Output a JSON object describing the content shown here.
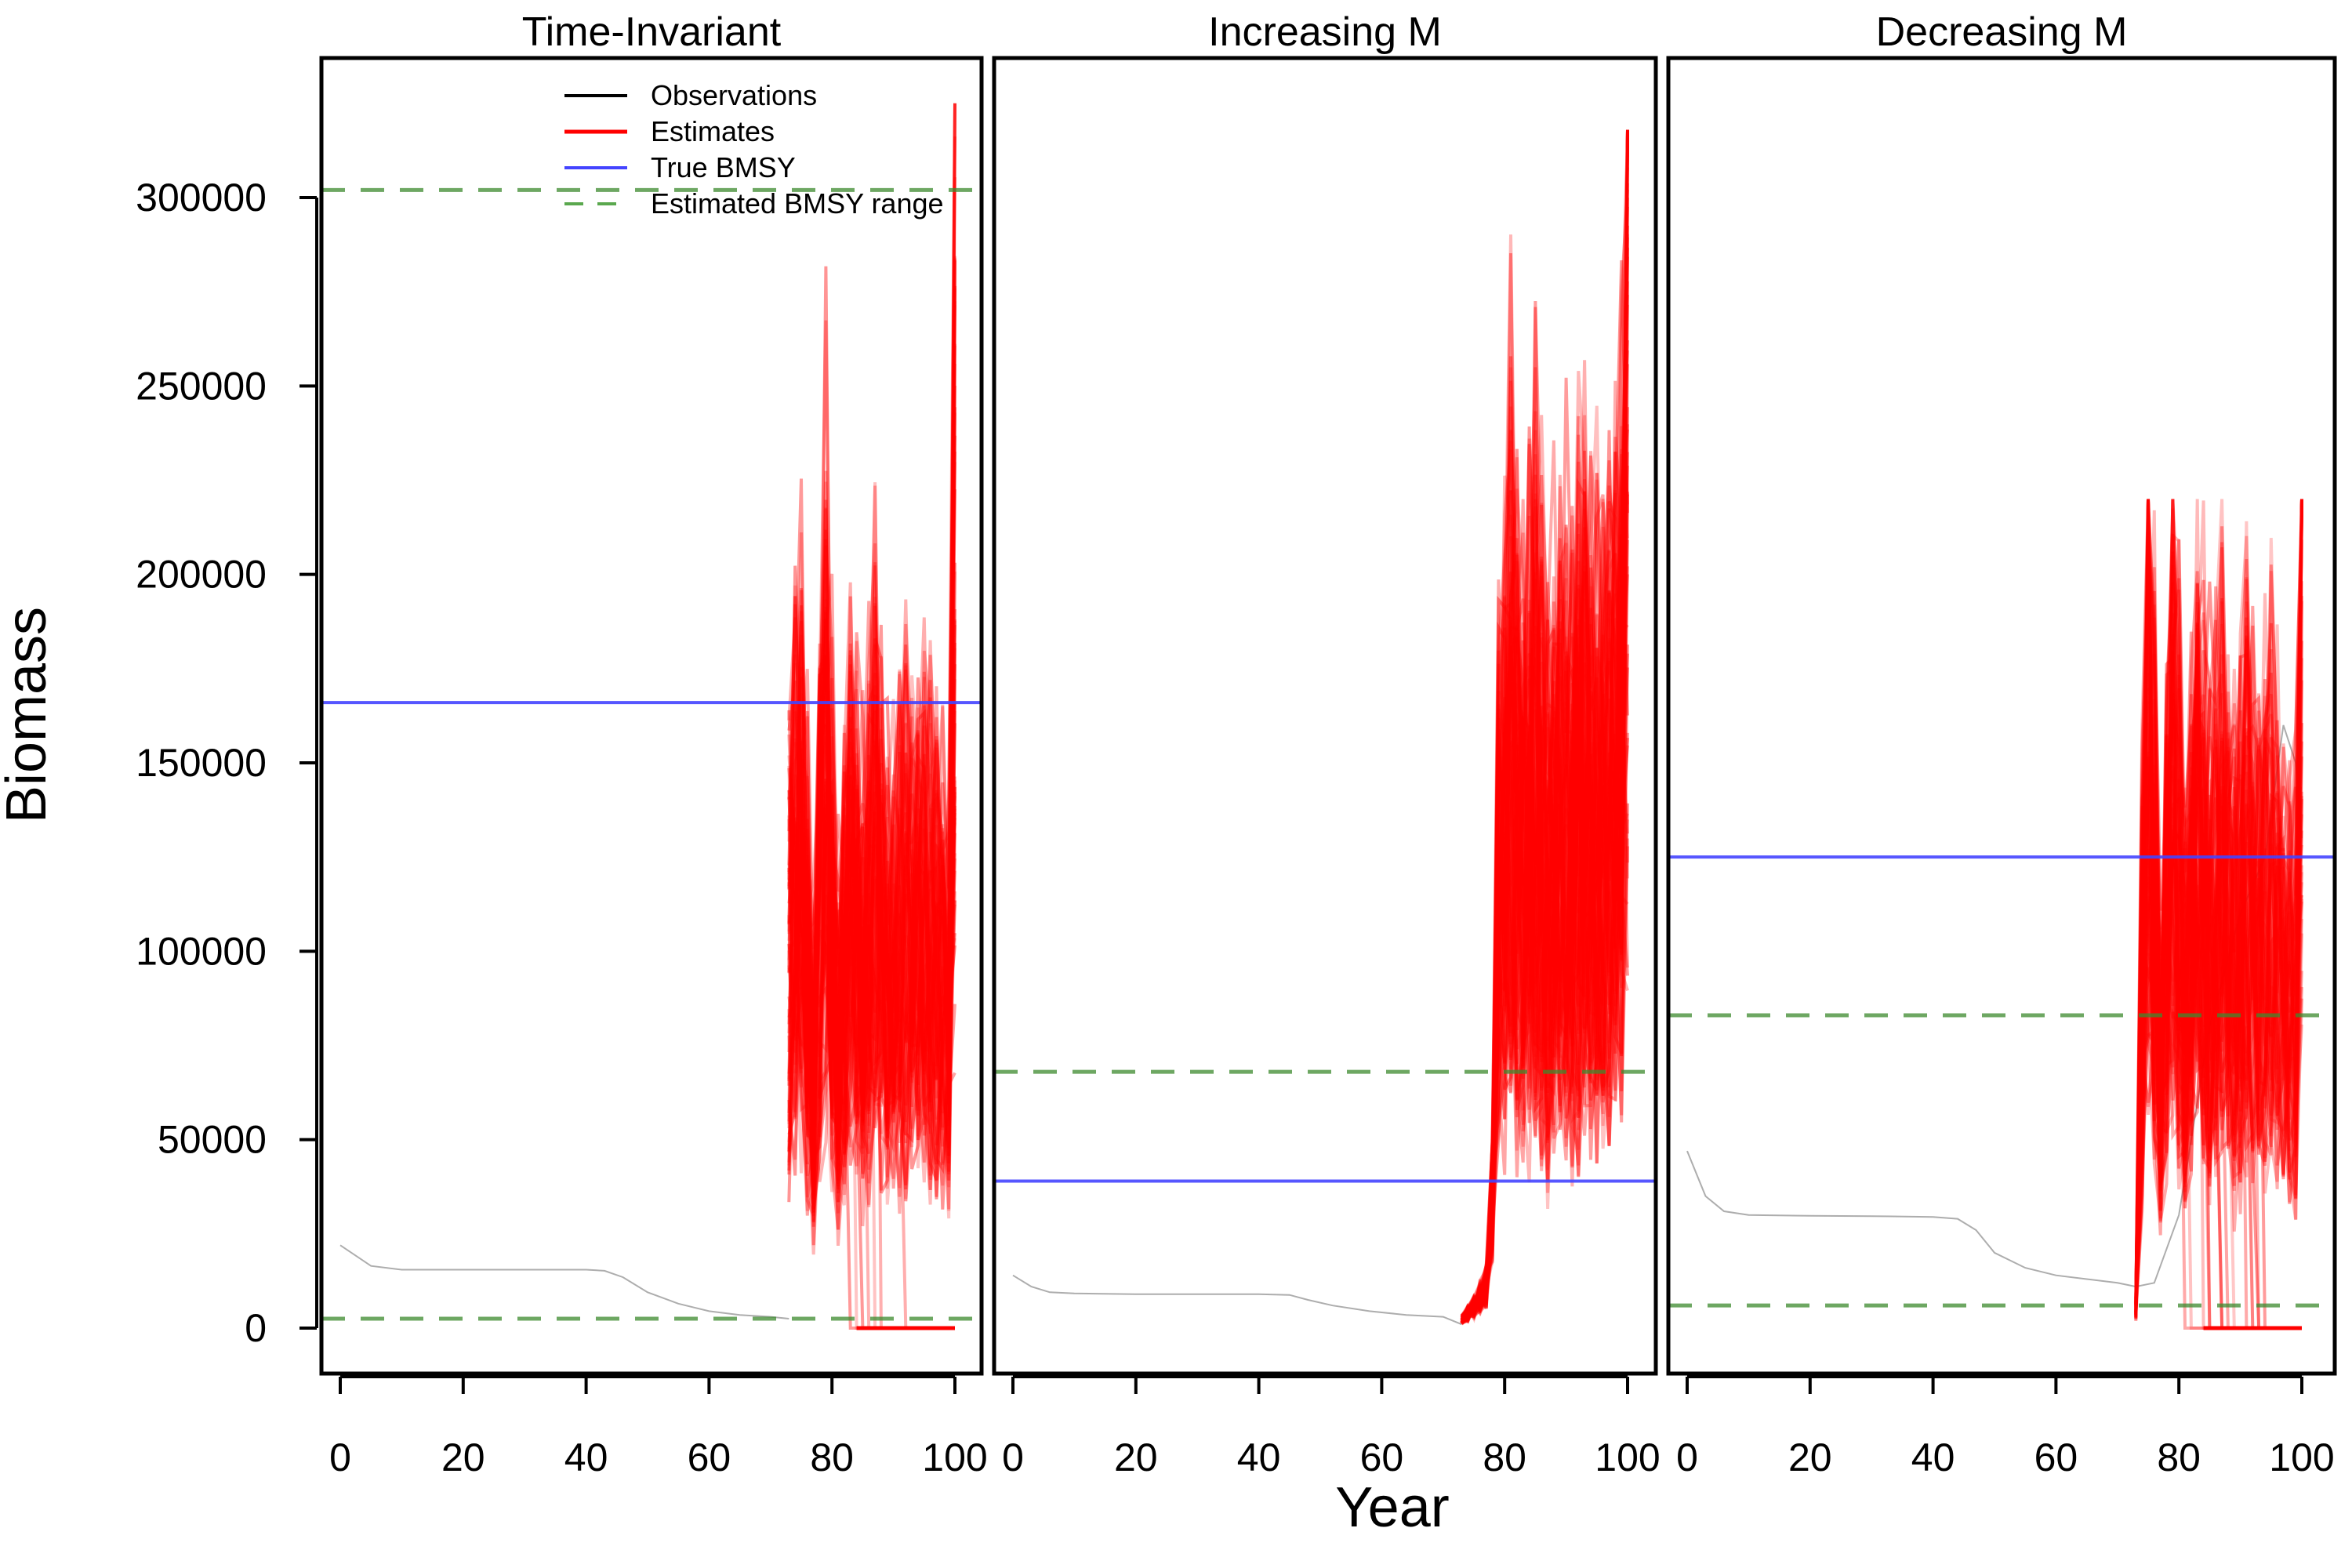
{
  "chart_data": {
    "type": "line",
    "ylabel": "Biomass",
    "xlabel": "Year",
    "xlim": [
      0,
      100
    ],
    "ylim": [
      0,
      300000
    ],
    "x_ticks": [
      "0",
      "20",
      "40",
      "60",
      "80",
      "100"
    ],
    "y_ticks": [
      "0",
      "50000",
      "100000",
      "150000",
      "200000",
      "250000",
      "300000"
    ],
    "colors": {
      "observations": "#000000",
      "estimates": "#ff0000",
      "true_bmsy": "#4444ff",
      "bmsy_range": "#3c8a2e"
    },
    "legend": {
      "position": "top-right (first panel)",
      "entries": [
        "Observations",
        "Estimates",
        "True BMSY",
        "Estimated BMSY range"
      ]
    },
    "panels": [
      {
        "title": "Time-Invariant",
        "true_bmsy": 166000,
        "bmsy_range": [
          2500,
          302000
        ],
        "observations": {
          "x": [
            0,
            5,
            10,
            20,
            30,
            40,
            43,
            46,
            50,
            55,
            60,
            65,
            70,
            73
          ],
          "y": [
            22000,
            16500,
            15500,
            15500,
            15500,
            15500,
            15200,
            13500,
            9500,
            6500,
            4500,
            3500,
            3000,
            2500
          ]
        },
        "estimates": {
          "start_year": 73,
          "end_year": 100,
          "min": 0,
          "max": 325000,
          "median_x": [
            73,
            75,
            77,
            79,
            81,
            83,
            85,
            87,
            89,
            91,
            93,
            95,
            97,
            99,
            100
          ],
          "median_y": [
            90000,
            130000,
            60000,
            140000,
            70000,
            110000,
            90000,
            120000,
            85000,
            105000,
            95000,
            110000,
            90000,
            80000,
            210000
          ]
        }
      },
      {
        "title": "Increasing M",
        "true_bmsy": 39000,
        "bmsy_range": [
          68000
        ],
        "observations": {
          "x": [
            0,
            3,
            6,
            10,
            20,
            30,
            40,
            45,
            48,
            52,
            58,
            64,
            70,
            73
          ],
          "y": [
            14000,
            11000,
            9500,
            9200,
            9000,
            9000,
            9000,
            8800,
            7500,
            6000,
            4500,
            3500,
            3000,
            1000
          ]
        },
        "estimates": {
          "start_year": 73,
          "end_year": 100,
          "min": 0,
          "max": 318000,
          "median_x": [
            73,
            75,
            77,
            78,
            79,
            81,
            83,
            85,
            87,
            89,
            91,
            93,
            95,
            97,
            99,
            100
          ],
          "median_y": [
            2000,
            5000,
            10000,
            30000,
            120000,
            150000,
            120000,
            140000,
            110000,
            135000,
            120000,
            140000,
            125000,
            130000,
            160000,
            260000
          ]
        }
      },
      {
        "title": "Decreasing M",
        "true_bmsy": 125000,
        "bmsy_range": [
          6000,
          83000
        ],
        "observations": {
          "x": [
            0,
            3,
            6,
            10,
            20,
            30,
            40,
            44,
            47,
            50,
            55,
            60,
            65,
            70,
            73,
            76,
            80,
            85,
            90,
            94,
            97,
            99,
            100
          ],
          "y": [
            47000,
            35000,
            31000,
            30000,
            29800,
            29700,
            29500,
            29000,
            26000,
            20000,
            16000,
            14000,
            13000,
            12000,
            11000,
            12000,
            30000,
            80000,
            110000,
            125000,
            160000,
            150000,
            130000
          ]
        },
        "estimates": {
          "start_year": 73,
          "end_year": 100,
          "min": 0,
          "max": 220000,
          "median_x": [
            73,
            75,
            77,
            79,
            81,
            83,
            85,
            87,
            89,
            91,
            93,
            95,
            97,
            99,
            100
          ],
          "median_y": [
            5000,
            170000,
            60000,
            150000,
            80000,
            130000,
            100000,
            115000,
            95000,
            120000,
            100000,
            115000,
            90000,
            85000,
            210000
          ]
        }
      }
    ]
  }
}
